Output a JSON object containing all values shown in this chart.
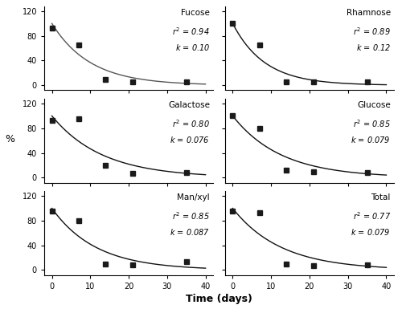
{
  "subplots": [
    {
      "title": "Fucose",
      "r2": "0.94",
      "k": "0.10",
      "k_val": 0.1,
      "data_x": [
        0,
        7,
        14,
        21,
        35
      ],
      "data_y": [
        93,
        65,
        10,
        5,
        5
      ]
    },
    {
      "title": "Rhamnose",
      "r2": "0.89",
      "k": "0.12",
      "k_val": 0.12,
      "data_x": [
        0,
        7,
        14,
        21,
        35
      ],
      "data_y": [
        100,
        65,
        5,
        5,
        5
      ]
    },
    {
      "title": "Galactose",
      "r2": "0.80",
      "k": "0.076",
      "k_val": 0.076,
      "data_x": [
        0,
        7,
        14,
        21,
        35
      ],
      "data_y": [
        93,
        95,
        20,
        7,
        8
      ]
    },
    {
      "title": "Glucose",
      "r2": "0.85",
      "k": "0.079",
      "k_val": 0.079,
      "data_x": [
        0,
        7,
        14,
        21,
        35
      ],
      "data_y": [
        100,
        80,
        12,
        10,
        8
      ]
    },
    {
      "title": "Man/xyl",
      "r2": "0.85",
      "k": "0.087",
      "k_val": 0.087,
      "data_x": [
        0,
        7,
        14,
        21,
        35
      ],
      "data_y": [
        95,
        80,
        10,
        8,
        13
      ]
    },
    {
      "title": "Total",
      "r2": "0.77",
      "k": "0.079",
      "k_val": 0.079,
      "data_x": [
        0,
        7,
        14,
        21,
        35
      ],
      "data_y": [
        95,
        93,
        10,
        7,
        8
      ]
    }
  ],
  "ylim": [
    -8,
    128
  ],
  "xlim": [
    -2,
    42
  ],
  "yticks": [
    0,
    40,
    80,
    120
  ],
  "xticks": [
    0,
    10,
    20,
    30,
    40
  ],
  "xlabel": "Time (days)",
  "ylabel": "%",
  "background_color": "#ffffff",
  "marker_color": "#1a1a1a",
  "line_color": "#555555",
  "line_color_dark": "#111111",
  "marker_size": 5,
  "title_fontsize": 7.5,
  "annot_fontsize": 7.0,
  "tick_fontsize": 7,
  "xlabel_fontsize": 9,
  "ylabel_fontsize": 9
}
